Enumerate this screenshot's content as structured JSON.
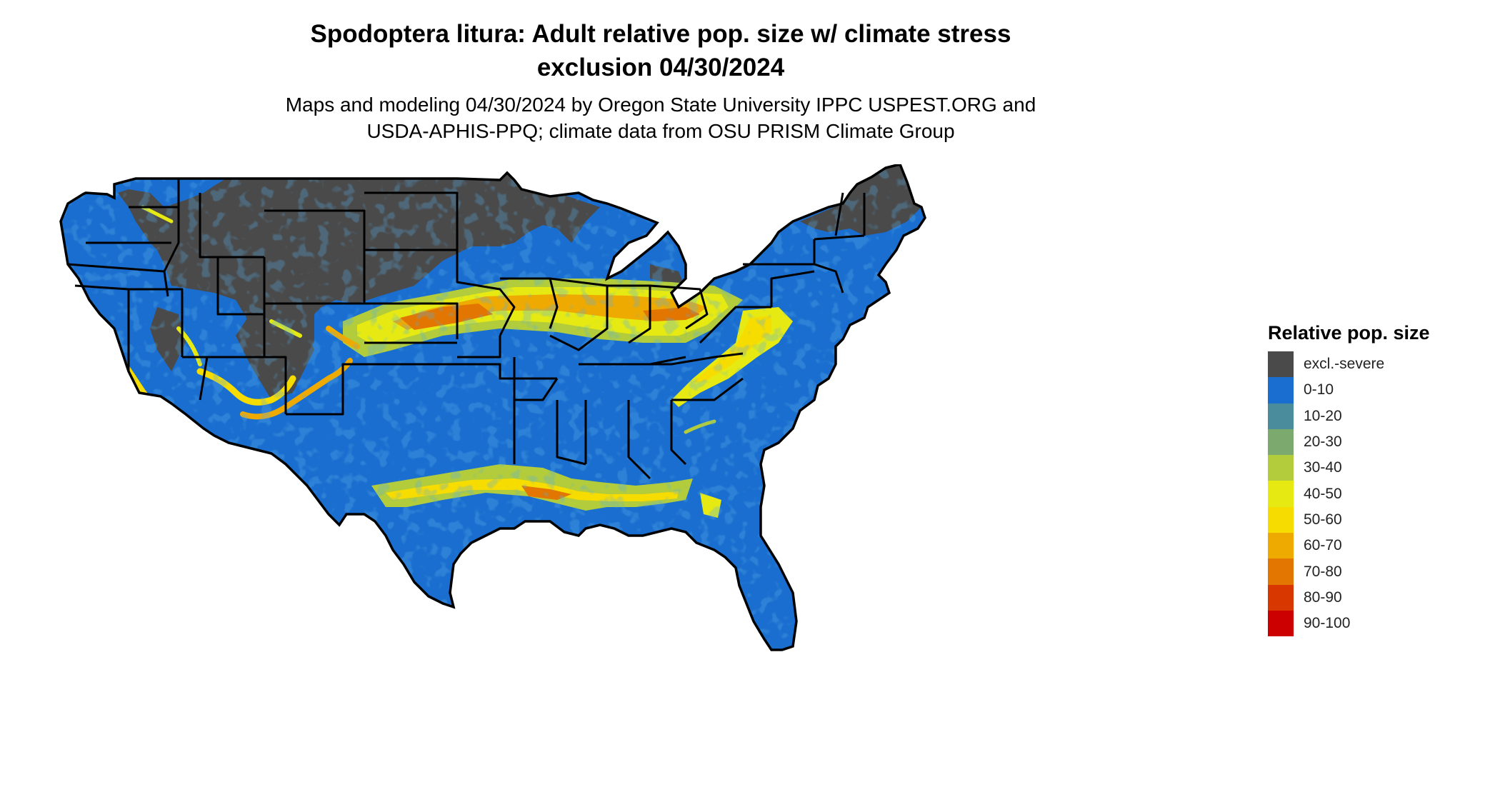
{
  "title_line1": "Spodoptera litura: Adult relative pop. size w/ climate stress",
  "title_line2": "exclusion 04/30/2024",
  "subtitle_line1": "Maps and modeling 04/30/2024 by Oregon State University IPPC USPEST.ORG and",
  "subtitle_line2": "USDA-APHIS-PPQ; climate data from OSU PRISM Climate Group",
  "legend": {
    "title": "Relative pop. size",
    "items": [
      {
        "label": "excl.-severe",
        "color": "#4a4a4a"
      },
      {
        "label": "0-10",
        "color": "#1a6ecf"
      },
      {
        "label": "10-20",
        "color": "#4a8c9c"
      },
      {
        "label": "20-30",
        "color": "#7caa6e"
      },
      {
        "label": "30-40",
        "color": "#b2cc3c"
      },
      {
        "label": "40-50",
        "color": "#e6ea12"
      },
      {
        "label": "50-60",
        "color": "#f7dc00"
      },
      {
        "label": "60-70",
        "color": "#eeaa00"
      },
      {
        "label": "70-80",
        "color": "#e27600"
      },
      {
        "label": "80-90",
        "color": "#d83800"
      },
      {
        "label": "90-100",
        "color": "#cc0000"
      }
    ]
  }
}
